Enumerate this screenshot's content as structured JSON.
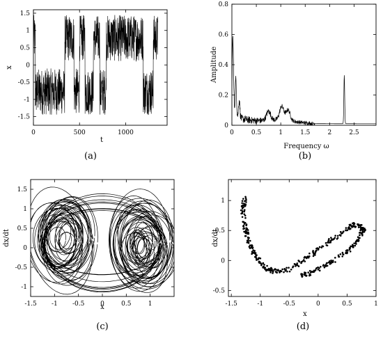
{
  "chart_data": [
    {
      "type": "line",
      "panel": "a",
      "caption": "(a)",
      "title": "",
      "xlabel": "t",
      "ylabel": "x",
      "xlim": [
        0,
        1450
      ],
      "ylim": [
        -1.75,
        1.6
      ],
      "xticks": [
        0,
        500,
        1000
      ],
      "xtick_labels": [
        "0",
        "500",
        "1000"
      ],
      "yticks": [
        -1.5,
        -1,
        -0.5,
        0,
        0.5,
        1,
        1.5
      ],
      "ytick_labels": [
        "-1.5",
        "-1",
        "-0.5",
        "0",
        "0.5",
        "1",
        "1.5"
      ],
      "grid": false,
      "series": [
        {
          "style": "chaotic-switching time series (dense oscillation)",
          "regimes": [
            {
              "t_start": 0,
              "t_end": 20,
              "wing": "upper"
            },
            {
              "t_start": 20,
              "t_end": 340,
              "wing": "lower"
            },
            {
              "t_start": 340,
              "t_end": 440,
              "wing": "upper"
            },
            {
              "t_start": 440,
              "t_end": 500,
              "wing": "lower"
            },
            {
              "t_start": 500,
              "t_end": 560,
              "wing": "upper"
            },
            {
              "t_start": 560,
              "t_end": 650,
              "wing": "lower"
            },
            {
              "t_start": 650,
              "t_end": 720,
              "wing": "upper"
            },
            {
              "t_start": 720,
              "t_end": 790,
              "wing": "lower"
            },
            {
              "t_start": 790,
              "t_end": 1190,
              "wing": "upper"
            },
            {
              "t_start": 1190,
              "t_end": 1300,
              "wing": "lower"
            },
            {
              "t_start": 1300,
              "t_end": 1350,
              "wing": "upper"
            }
          ],
          "upper_wing_range": [
            0.1,
            1.45
          ],
          "lower_wing_range": [
            -1.45,
            -0.1
          ]
        }
      ]
    },
    {
      "type": "line",
      "panel": "b",
      "caption": "(b)",
      "title": "",
      "xlabel": "Frequency ω",
      "ylabel": "Amplitude",
      "xlim": [
        0,
        2.95
      ],
      "ylim": [
        0,
        0.8
      ],
      "xticks": [
        0,
        0.5,
        1,
        1.5,
        2,
        2.5
      ],
      "xtick_labels": [
        "0",
        "0.5",
        "1",
        "1.5",
        "2",
        "2.5"
      ],
      "yticks": [
        0,
        0.2,
        0.4,
        0.6,
        0.8
      ],
      "ytick_labels": [
        "0",
        "0.2",
        "0.4",
        "0.6",
        "0.8"
      ],
      "grid": false,
      "series": [
        {
          "style": "amplitude spectrum",
          "peaks": [
            {
              "x": 0.02,
              "y": 0.55
            },
            {
              "x": 0.08,
              "y": 0.28
            },
            {
              "x": 0.15,
              "y": 0.15
            },
            {
              "x": 0.75,
              "y": 0.09
            },
            {
              "x": 1.02,
              "y": 0.12
            },
            {
              "x": 1.15,
              "y": 0.1
            },
            {
              "x": 2.3,
              "y": 0.35
            }
          ]
        }
      ]
    },
    {
      "type": "line",
      "panel": "c",
      "caption": "(c)",
      "title": "",
      "xlabel": "x",
      "ylabel": "dx/dt",
      "xlim": [
        -1.5,
        1.5
      ],
      "ylim": [
        -1.25,
        1.75
      ],
      "xticks": [
        -1.5,
        -1,
        -0.5,
        0,
        0.5,
        1
      ],
      "xtick_labels": [
        "-1.5",
        "-1",
        "-0.5",
        "0",
        "0.5",
        "1"
      ],
      "yticks": [
        -1,
        -0.5,
        0,
        0.5,
        1,
        1.5
      ],
      "ytick_labels": [
        "-1",
        "-0.5",
        "0",
        "0.5",
        "1",
        "1.5"
      ],
      "grid": false,
      "series": [
        {
          "style": "double-scroll phase portrait",
          "left_scroll_center": [
            -0.85,
            0.25
          ],
          "right_scroll_center": [
            0.85,
            0.05
          ],
          "x_extent": [
            -1.5,
            1.5
          ],
          "y_extent": [
            -1.15,
            1.45
          ]
        }
      ]
    },
    {
      "type": "scatter",
      "panel": "d",
      "caption": "(d)",
      "title": "",
      "xlabel": "x",
      "ylabel": "dx/dt",
      "xlim": [
        -1.55,
        1.0
      ],
      "ylim": [
        -0.6,
        1.35
      ],
      "xticks": [
        -1.5,
        -1,
        -0.5,
        0,
        0.5,
        1
      ],
      "xtick_labels": [
        "-1.5",
        "-1",
        "-0.5",
        "0",
        "0.5",
        "1"
      ],
      "yticks": [
        -0.5,
        0,
        0.5,
        1
      ],
      "ytick_labels": [
        "-0.5",
        "0",
        "0.5",
        "1"
      ],
      "grid": false,
      "series": [
        {
          "style": "Poincaré section points",
          "branches": [
            {
              "path": [
                [
                  -1.27,
                  1.05
                ],
                [
                  -1.3,
                  0.8
                ],
                [
                  -1.25,
                  0.5
                ],
                [
                  -1.2,
                  0.3
                ],
                [
                  -1.1,
                  0.1
                ],
                [
                  -0.95,
                  -0.1
                ],
                [
                  -0.8,
                  -0.18
                ]
              ]
            },
            {
              "path": [
                [
                  -0.8,
                  -0.18
                ],
                [
                  -0.5,
                  -0.15
                ],
                [
                  -0.2,
                  0.05
                ],
                [
                  0.1,
                  0.25
                ],
                [
                  0.4,
                  0.45
                ],
                [
                  0.6,
                  0.6
                ],
                [
                  0.8,
                  0.55
                ]
              ]
            },
            {
              "path": [
                [
                  0.8,
                  0.55
                ],
                [
                  0.7,
                  0.35
                ],
                [
                  0.5,
                  0.15
                ],
                [
                  0.2,
                  -0.05
                ],
                [
                  -0.1,
                  -0.2
                ],
                [
                  -0.3,
                  -0.25
                ]
              ]
            }
          ]
        }
      ]
    }
  ]
}
